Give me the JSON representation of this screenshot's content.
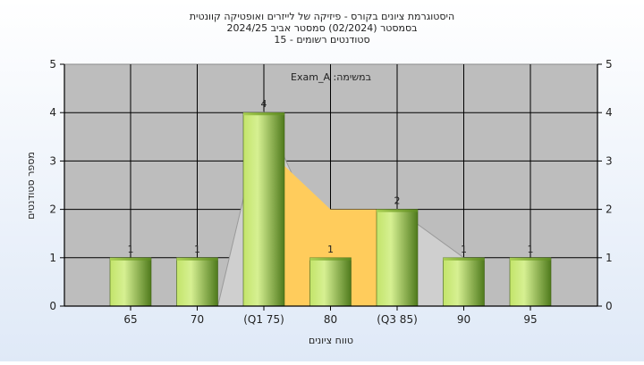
{
  "chart_data": {
    "type": "bar",
    "title_lines": [
      "היסטוגרמת ציונים בקורס - פיזיקה של לייזרים ואופטיקה קוונטית",
      "בסמסטר   (02/2024)   סמסטר אביב 2024/25",
      "סטודנטים רשומים - 15"
    ],
    "legend_text": "Exam_A :במשימה",
    "xlabel": "טווח ציונים",
    "ylabel": "מספר סטודנטים",
    "categories": [
      "65",
      "70",
      "(Q1 75)",
      "80",
      "(Q3 85)",
      "90",
      "95"
    ],
    "values": [
      1,
      1,
      4,
      1,
      2,
      1,
      1
    ],
    "ylim": [
      0,
      5
    ],
    "yticks": [
      0,
      1,
      2,
      3,
      4,
      5
    ],
    "grid": true,
    "colors": {
      "plot_background": "#bdbdbd",
      "bar_light": "#d4ee8e",
      "bar_dark": "#4f7a1c",
      "iqr_fill": "#ffcc5c",
      "range_fill": "#cfcfcf"
    }
  }
}
